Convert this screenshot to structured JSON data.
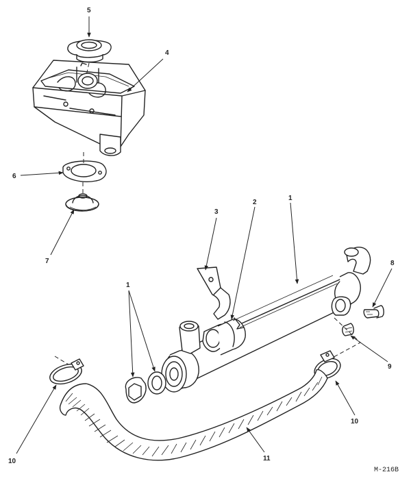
{
  "callouts": {
    "c5": "5",
    "c4": "4",
    "c6": "6",
    "c7": "7",
    "c3": "3",
    "c2": "2",
    "c1_top": "1",
    "c8": "8",
    "c1_left": "1",
    "c9": "9",
    "c10_right": "10",
    "c10_left": "10",
    "c11": "11"
  },
  "figure_id": "M-216B"
}
